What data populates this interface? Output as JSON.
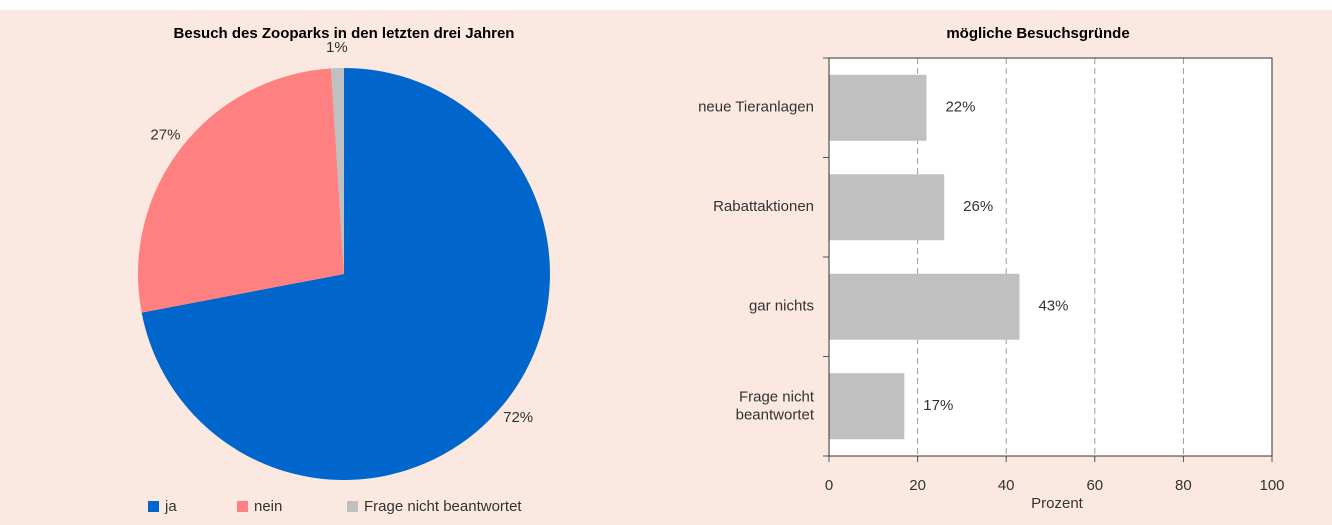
{
  "chart_data": [
    {
      "type": "pie",
      "title": "Besuch des Zooparks in den letzten drei Jahren",
      "categories": [
        "ja",
        "nein",
        "Frage nicht beantwortet"
      ],
      "values": [
        72,
        27,
        1
      ],
      "value_labels": [
        "72%",
        "27%",
        "1%"
      ],
      "colors": [
        "#0066cc",
        "#ff8080",
        "#c0c0c0"
      ],
      "legend": "bottom"
    },
    {
      "type": "hbar",
      "title": "mögliche Besuchsgründe",
      "categories": [
        "neue Tieranlagen",
        "Rabattaktionen",
        "gar nichts",
        "Frage nicht\nbeantwortet"
      ],
      "values": [
        22,
        26,
        43,
        17
      ],
      "value_labels": [
        "22%",
        "26%",
        "43%",
        "17%"
      ],
      "color": "#c0c0c0",
      "xlabel": "Prozent",
      "xlim": [
        0,
        100
      ],
      "xticks": [
        0,
        20,
        40,
        60,
        80,
        100
      ],
      "grid": true
    }
  ]
}
